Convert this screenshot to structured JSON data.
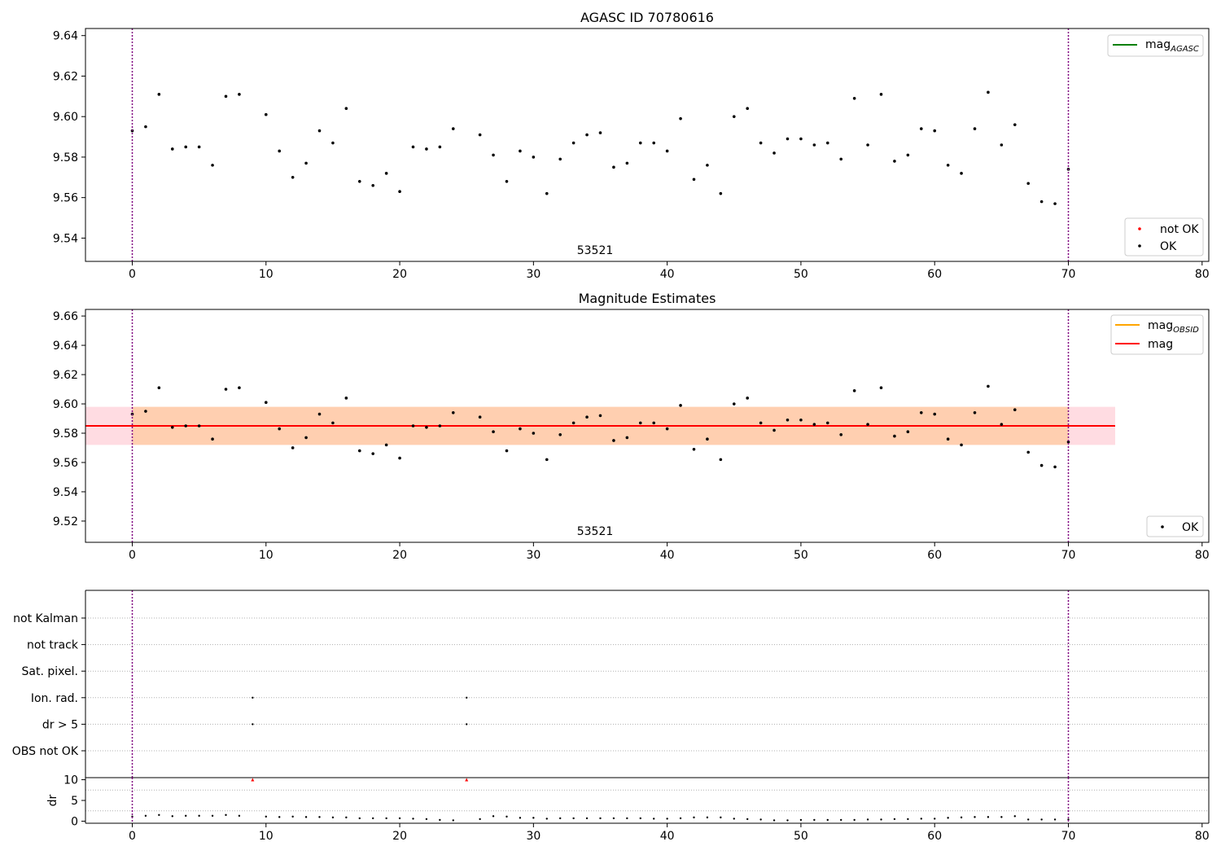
{
  "chart_data": [
    {
      "type": "scatter",
      "title": "AGASC ID 70780616",
      "annotation": "53521",
      "xlim": [
        -3.5,
        80.5
      ],
      "ylim": [
        9.5285,
        9.6435
      ],
      "xticks": [
        0,
        10,
        20,
        30,
        40,
        50,
        60,
        70,
        80
      ],
      "xtick_labels": [
        "0",
        "10",
        "20",
        "30",
        "40",
        "50",
        "60",
        "70",
        "80"
      ],
      "yticks": [
        9.54,
        9.56,
        9.58,
        9.6,
        9.62,
        9.64
      ],
      "ytick_labels": [
        "9.54",
        "9.56",
        "9.58",
        "9.60",
        "9.62",
        "9.64"
      ],
      "vlines": [
        0,
        70
      ],
      "legend_upper": [
        {
          "label": "mag",
          "sub": "AGASC",
          "color": "#008000"
        }
      ],
      "legend_lower": [
        {
          "label": "not OK",
          "color": "#ff0000"
        },
        {
          "label": "OK",
          "color": "#000000"
        }
      ],
      "series": [
        {
          "name": "OK",
          "color": "#000000",
          "x": [
            0,
            1,
            2,
            3,
            4,
            5,
            6,
            7,
            8,
            10,
            11,
            12,
            13,
            14,
            15,
            16,
            17,
            18,
            19,
            20,
            21,
            22,
            23,
            24,
            26,
            27,
            28,
            29,
            30,
            31,
            32,
            33,
            34,
            35,
            36,
            37,
            38,
            39,
            40,
            41,
            42,
            43,
            44,
            45,
            46,
            47,
            48,
            49,
            50,
            51,
            52,
            53,
            54,
            55,
            56,
            57,
            58,
            59,
            60,
            61,
            62,
            63,
            64,
            65,
            66,
            67,
            68,
            69,
            70
          ],
          "y": [
            9.593,
            9.595,
            9.611,
            9.584,
            9.585,
            9.585,
            9.576,
            9.61,
            9.611,
            9.601,
            9.583,
            9.57,
            9.577,
            9.593,
            9.587,
            9.604,
            9.568,
            9.566,
            9.572,
            9.563,
            9.585,
            9.584,
            9.585,
            9.594,
            9.591,
            9.581,
            9.568,
            9.583,
            9.58,
            9.562,
            9.579,
            9.587,
            9.591,
            9.592,
            9.575,
            9.577,
            9.587,
            9.587,
            9.583,
            9.599,
            9.569,
            9.576,
            9.562,
            9.6,
            9.604,
            9.587,
            9.582,
            9.589,
            9.589,
            9.586,
            9.587,
            9.579,
            9.609,
            9.586,
            9.611,
            9.578,
            9.581,
            9.594,
            9.593,
            9.576,
            9.572,
            9.594,
            9.612,
            9.586,
            9.596,
            9.567,
            9.558,
            9.557,
            9.574
          ]
        }
      ]
    },
    {
      "type": "scatter",
      "title": "Magnitude Estimates",
      "annotation": "53521",
      "xlim": [
        -3.5,
        80.5
      ],
      "ylim": [
        9.5055,
        9.6645
      ],
      "xticks": [
        0,
        10,
        20,
        30,
        40,
        50,
        60,
        70,
        80
      ],
      "xtick_labels": [
        "0",
        "10",
        "20",
        "30",
        "40",
        "50",
        "60",
        "70",
        "80"
      ],
      "yticks": [
        9.52,
        9.54,
        9.56,
        9.58,
        9.6,
        9.62,
        9.64,
        9.66
      ],
      "ytick_labels": [
        "9.52",
        "9.54",
        "9.56",
        "9.58",
        "9.60",
        "9.62",
        "9.64",
        "9.66"
      ],
      "vlines": [
        0,
        70
      ],
      "mag_line": 9.585,
      "mag_band": [
        9.572,
        9.598
      ],
      "band_xrange": [
        -3.5,
        73.5
      ],
      "legend_upper": [
        {
          "label": "mag",
          "sub": "OBSID",
          "color": "#ffa500"
        },
        {
          "label": "mag",
          "sub": "",
          "color": "#ff0000"
        }
      ],
      "legend_lower": [
        {
          "label": "OK",
          "color": "#000000"
        }
      ],
      "series": [
        {
          "name": "OK",
          "color": "#000000",
          "x": [
            0,
            1,
            2,
            3,
            4,
            5,
            6,
            7,
            8,
            10,
            11,
            12,
            13,
            14,
            15,
            16,
            17,
            18,
            19,
            20,
            21,
            22,
            23,
            24,
            26,
            27,
            28,
            29,
            30,
            31,
            32,
            33,
            34,
            35,
            36,
            37,
            38,
            39,
            40,
            41,
            42,
            43,
            44,
            45,
            46,
            47,
            48,
            49,
            50,
            51,
            52,
            53,
            54,
            55,
            56,
            57,
            58,
            59,
            60,
            61,
            62,
            63,
            64,
            65,
            66,
            67,
            68,
            69,
            70
          ],
          "y": [
            9.593,
            9.595,
            9.611,
            9.584,
            9.585,
            9.585,
            9.576,
            9.61,
            9.611,
            9.601,
            9.583,
            9.57,
            9.577,
            9.593,
            9.587,
            9.604,
            9.568,
            9.566,
            9.572,
            9.563,
            9.585,
            9.584,
            9.585,
            9.594,
            9.591,
            9.581,
            9.568,
            9.583,
            9.58,
            9.562,
            9.579,
            9.587,
            9.591,
            9.592,
            9.575,
            9.577,
            9.587,
            9.587,
            9.583,
            9.599,
            9.569,
            9.576,
            9.562,
            9.6,
            9.604,
            9.587,
            9.582,
            9.589,
            9.589,
            9.586,
            9.587,
            9.579,
            9.609,
            9.586,
            9.611,
            9.578,
            9.581,
            9.594,
            9.593,
            9.576,
            9.572,
            9.594,
            9.612,
            9.586,
            9.596,
            9.567,
            9.558,
            9.557,
            9.574
          ]
        }
      ]
    },
    {
      "type": "scatter",
      "title": "",
      "xlim": [
        -3.5,
        80.5
      ],
      "xticks": [
        0,
        10,
        20,
        30,
        40,
        50,
        60,
        70,
        80
      ],
      "xtick_labels": [
        "0",
        "10",
        "20",
        "30",
        "40",
        "50",
        "60",
        "70",
        "80"
      ],
      "vlines": [
        0,
        70
      ],
      "flag_labels": [
        "not Kalman",
        "not track",
        "Sat. pixel.",
        "Ion. rad.",
        "dr > 5",
        "OBS not OK"
      ],
      "flags": [
        {
          "flag": "Ion. rad.",
          "x": [
            9,
            25
          ]
        },
        {
          "flag": "dr > 5",
          "x": [
            9,
            25
          ]
        }
      ]
    },
    {
      "type": "scatter",
      "title": "",
      "ylabel": "dr",
      "xlim": [
        -3.5,
        80.5
      ],
      "ylim": [
        -0.5,
        10.5
      ],
      "xticks": [
        0,
        10,
        20,
        30,
        40,
        50,
        60,
        70,
        80
      ],
      "xtick_labels": [
        "0",
        "10",
        "20",
        "30",
        "40",
        "50",
        "60",
        "70",
        "80"
      ],
      "yticks": [
        0,
        5,
        10
      ],
      "ytick_labels": [
        "0",
        "5",
        "10"
      ],
      "vlines": [
        0,
        70
      ],
      "series": [
        {
          "name": "dr",
          "color": "#000000",
          "x": [
            0,
            1,
            2,
            3,
            4,
            5,
            6,
            7,
            8,
            10,
            11,
            12,
            13,
            14,
            15,
            16,
            17,
            18,
            19,
            20,
            21,
            22,
            23,
            24,
            26,
            27,
            28,
            29,
            30,
            31,
            32,
            33,
            34,
            35,
            36,
            37,
            38,
            39,
            40,
            41,
            42,
            43,
            44,
            45,
            46,
            47,
            48,
            49,
            50,
            51,
            52,
            53,
            54,
            55,
            56,
            57,
            58,
            59,
            60,
            61,
            62,
            63,
            64,
            65,
            66,
            67,
            68,
            69,
            70
          ],
          "y": [
            1.1,
            1.3,
            1.5,
            1.2,
            1.3,
            1.3,
            1.3,
            1.5,
            1.3,
            1.1,
            1.0,
            1.1,
            1.0,
            1.0,
            0.9,
            0.9,
            0.7,
            0.7,
            0.7,
            0.7,
            0.6,
            0.5,
            0.3,
            0.2,
            0.5,
            1.2,
            1.1,
            0.8,
            0.8,
            0.6,
            0.7,
            0.7,
            0.7,
            0.7,
            0.7,
            0.7,
            0.7,
            0.6,
            0.6,
            0.7,
            0.9,
            0.9,
            0.9,
            0.6,
            0.5,
            0.4,
            0.2,
            0.2,
            0.3,
            0.3,
            0.3,
            0.3,
            0.3,
            0.4,
            0.4,
            0.5,
            0.5,
            0.6,
            0.6,
            0.8,
            0.9,
            1.0,
            1.0,
            1.0,
            1.2,
            0.4,
            0.4,
            0.4,
            0.4
          ]
        },
        {
          "name": "clipped",
          "color": "#ff0000",
          "marker": "triangle",
          "x": [
            9,
            25
          ],
          "y": [
            10,
            10
          ]
        }
      ]
    }
  ]
}
